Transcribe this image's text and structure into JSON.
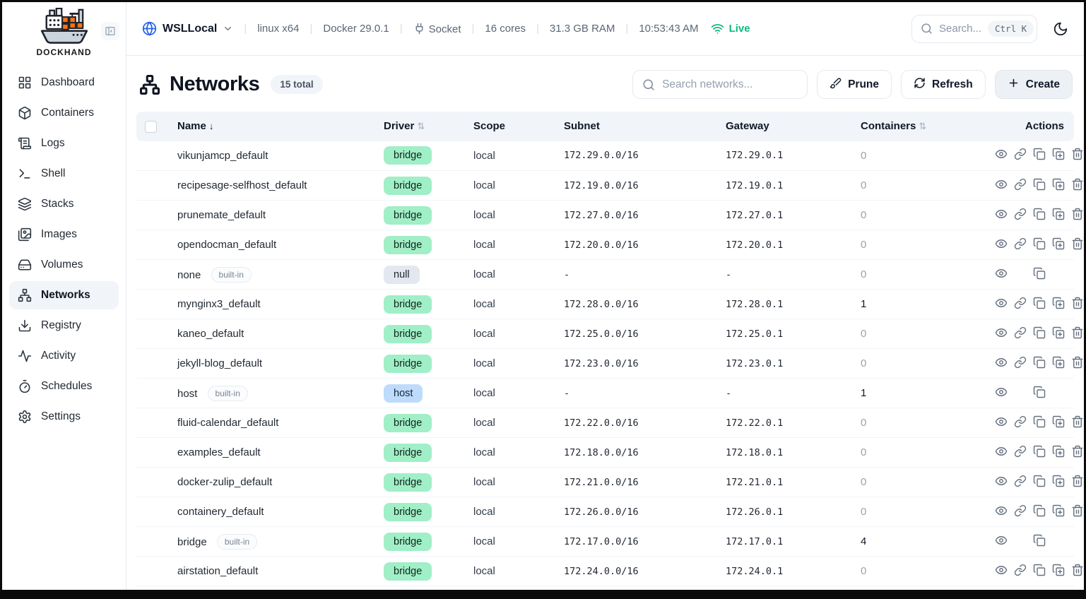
{
  "app": {
    "brand": "DOCKHAND"
  },
  "sidebar": {
    "items": [
      {
        "label": "Dashboard",
        "icon": "dashboard-icon",
        "active": false
      },
      {
        "label": "Containers",
        "icon": "containers-icon",
        "active": false
      },
      {
        "label": "Logs",
        "icon": "logs-icon",
        "active": false
      },
      {
        "label": "Shell",
        "icon": "shell-icon",
        "active": false
      },
      {
        "label": "Stacks",
        "icon": "stacks-icon",
        "active": false
      },
      {
        "label": "Images",
        "icon": "images-icon",
        "active": false
      },
      {
        "label": "Volumes",
        "icon": "volumes-icon",
        "active": false
      },
      {
        "label": "Networks",
        "icon": "networks-icon",
        "active": true
      },
      {
        "label": "Registry",
        "icon": "registry-icon",
        "active": false
      },
      {
        "label": "Activity",
        "icon": "activity-icon",
        "active": false
      },
      {
        "label": "Schedules",
        "icon": "schedules-icon",
        "active": false
      },
      {
        "label": "Settings",
        "icon": "settings-icon",
        "active": false
      }
    ]
  },
  "topbar": {
    "host": "WSLLocal",
    "platform": "linux x64",
    "docker_version": "Docker 29.0.1",
    "connection": "Socket",
    "cores": "16 cores",
    "ram": "31.3 GB RAM",
    "time": "10:53:43 AM",
    "live_label": "Live",
    "search_placeholder": "Search...",
    "search_shortcut": "Ctrl K"
  },
  "page": {
    "title": "Networks",
    "total_badge": "15 total",
    "search_placeholder": "Search networks...",
    "prune_label": "Prune",
    "refresh_label": "Refresh",
    "create_label": "Create"
  },
  "table": {
    "columns": [
      {
        "label": "Name",
        "sort": "↓"
      },
      {
        "label": "Driver",
        "sort": "⇅"
      },
      {
        "label": "Scope",
        "sort": ""
      },
      {
        "label": "Subnet",
        "sort": ""
      },
      {
        "label": "Gateway",
        "sort": ""
      },
      {
        "label": "Containers",
        "sort": "⇅"
      },
      {
        "label": "Actions",
        "sort": ""
      }
    ],
    "builtin_badge_label": "built-in",
    "action_icons": [
      "view-icon",
      "link-icon",
      "copy-icon",
      "duplicate-icon",
      "delete-icon"
    ],
    "builtin_action_icons": [
      "view-icon",
      "copy-icon"
    ],
    "rows": [
      {
        "name": "vikunjamcp_default",
        "builtin": false,
        "driver": "bridge",
        "scope": "local",
        "subnet": "172.29.0.0/16",
        "gateway": "172.29.0.1",
        "containers": "0"
      },
      {
        "name": "recipesage-selfhost_default",
        "builtin": false,
        "driver": "bridge",
        "scope": "local",
        "subnet": "172.19.0.0/16",
        "gateway": "172.19.0.1",
        "containers": "0"
      },
      {
        "name": "prunemate_default",
        "builtin": false,
        "driver": "bridge",
        "scope": "local",
        "subnet": "172.27.0.0/16",
        "gateway": "172.27.0.1",
        "containers": "0"
      },
      {
        "name": "opendocman_default",
        "builtin": false,
        "driver": "bridge",
        "scope": "local",
        "subnet": "172.20.0.0/16",
        "gateway": "172.20.0.1",
        "containers": "0"
      },
      {
        "name": "none",
        "builtin": true,
        "driver": "null",
        "scope": "local",
        "subnet": "-",
        "gateway": "-",
        "containers": "0"
      },
      {
        "name": "mynginx3_default",
        "builtin": false,
        "driver": "bridge",
        "scope": "local",
        "subnet": "172.28.0.0/16",
        "gateway": "172.28.0.1",
        "containers": "1"
      },
      {
        "name": "kaneo_default",
        "builtin": false,
        "driver": "bridge",
        "scope": "local",
        "subnet": "172.25.0.0/16",
        "gateway": "172.25.0.1",
        "containers": "0"
      },
      {
        "name": "jekyll-blog_default",
        "builtin": false,
        "driver": "bridge",
        "scope": "local",
        "subnet": "172.23.0.0/16",
        "gateway": "172.23.0.1",
        "containers": "0"
      },
      {
        "name": "host",
        "builtin": true,
        "driver": "host",
        "scope": "local",
        "subnet": "-",
        "gateway": "-",
        "containers": "1"
      },
      {
        "name": "fluid-calendar_default",
        "builtin": false,
        "driver": "bridge",
        "scope": "local",
        "subnet": "172.22.0.0/16",
        "gateway": "172.22.0.1",
        "containers": "0"
      },
      {
        "name": "examples_default",
        "builtin": false,
        "driver": "bridge",
        "scope": "local",
        "subnet": "172.18.0.0/16",
        "gateway": "172.18.0.1",
        "containers": "0"
      },
      {
        "name": "docker-zulip_default",
        "builtin": false,
        "driver": "bridge",
        "scope": "local",
        "subnet": "172.21.0.0/16",
        "gateway": "172.21.0.1",
        "containers": "0"
      },
      {
        "name": "containery_default",
        "builtin": false,
        "driver": "bridge",
        "scope": "local",
        "subnet": "172.26.0.0/16",
        "gateway": "172.26.0.1",
        "containers": "0"
      },
      {
        "name": "bridge",
        "builtin": true,
        "driver": "bridge",
        "scope": "local",
        "subnet": "172.17.0.0/16",
        "gateway": "172.17.0.1",
        "containers": "4"
      },
      {
        "name": "airstation_default",
        "builtin": false,
        "driver": "bridge",
        "scope": "local",
        "subnet": "172.24.0.0/16",
        "gateway": "172.24.0.1",
        "containers": "0"
      }
    ]
  },
  "colors": {
    "driver_bridge_badge": "#a0efc7",
    "driver_null_badge": "#e3e8ef",
    "driver_host_badge": "#bedbfc",
    "live_green": "#10b981",
    "globe_blue": "#2563eb",
    "logo_container_orange": "#f97316"
  }
}
